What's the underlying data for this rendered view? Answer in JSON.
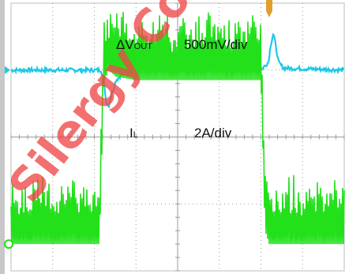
{
  "colors": {
    "background": "#ffffff",
    "grid": "#9a9a9a",
    "border": "#bdbdbd",
    "vout_trace": "#1ec8e6",
    "il_trace": "#22e01a",
    "watermark": "#f04848",
    "trigger_marker": "#e0a030"
  },
  "watermark": {
    "text": "Silergy Corp"
  },
  "chart_data": {
    "type": "line",
    "grid": true,
    "divisions": {
      "horizontal": 8,
      "vertical": 4
    },
    "series": [
      {
        "name": "ΔVOUT",
        "name_parts": {
          "prefix": "ΔV",
          "subscript": "OUT"
        },
        "scale": "500mV/div",
        "baseline_div": 3.0,
        "x_div": [
          0.0,
          2.16,
          2.22,
          2.28,
          2.34,
          2.4,
          2.52,
          2.7,
          3.0,
          4.0,
          6.0,
          6.18,
          6.24,
          6.3,
          6.36,
          6.42,
          6.54,
          8.0
        ],
        "y_div": [
          0.0,
          0.0,
          -0.12,
          -0.45,
          -0.55,
          -0.4,
          -0.15,
          -0.05,
          0.0,
          0.0,
          0.0,
          0.12,
          0.4,
          0.55,
          0.35,
          0.12,
          0.03,
          0.0
        ],
        "noise_div": 0.06
      },
      {
        "name": "IL",
        "name_parts": {
          "prefix": "I",
          "subscript": "L"
        },
        "scale": "2A/div",
        "baseline_div": 0.4,
        "x_div": [
          0.0,
          2.12,
          2.16,
          2.22,
          2.34,
          2.52,
          3.0,
          4.0,
          5.0,
          5.5,
          6.0,
          6.04,
          6.1,
          6.2,
          6.32,
          8.0
        ],
        "y_div": [
          0.0,
          0.0,
          0.8,
          2.4,
          2.6,
          2.5,
          2.45,
          2.45,
          2.45,
          2.45,
          2.45,
          1.6,
          0.2,
          0.0,
          0.0,
          0.0
        ],
        "ripple_div_low": 0.75,
        "ripple_div_high": 1.05
      }
    ]
  }
}
